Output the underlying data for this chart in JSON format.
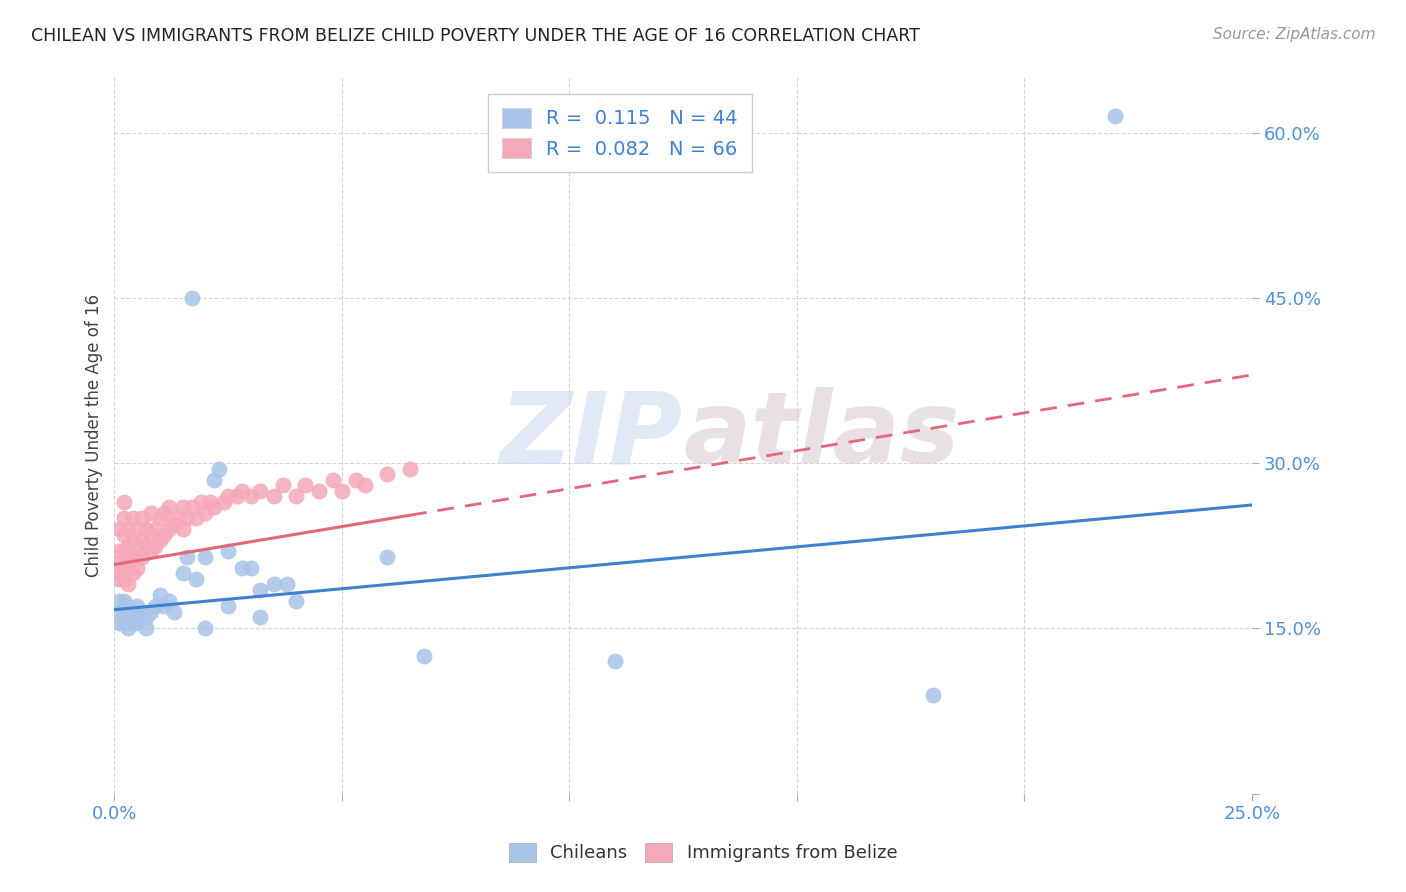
{
  "title": "CHILEAN VS IMMIGRANTS FROM BELIZE CHILD POVERTY UNDER THE AGE OF 16 CORRELATION CHART",
  "source": "Source: ZipAtlas.com",
  "ylabel": "Child Poverty Under the Age of 16",
  "xlim": [
    0.0,
    0.25
  ],
  "ylim": [
    0.0,
    0.65
  ],
  "x_ticks": [
    0.0,
    0.05,
    0.1,
    0.15,
    0.2,
    0.25
  ],
  "x_tick_labels": [
    "0.0%",
    "",
    "",
    "",
    "",
    "25.0%"
  ],
  "y_ticks": [
    0.0,
    0.15,
    0.3,
    0.45,
    0.6
  ],
  "y_tick_labels": [
    "",
    "15.0%",
    "30.0%",
    "45.0%",
    "60.0%"
  ],
  "legend_labels": [
    "Chileans",
    "Immigrants from Belize"
  ],
  "R_chilean": 0.115,
  "N_chilean": 44,
  "R_belize": 0.082,
  "N_belize": 66,
  "chilean_color": "#aac4e8",
  "belize_color": "#f5a8b8",
  "chilean_line_color": "#4080d0",
  "belize_line_color": "#e06878",
  "watermark": "ZIPatlas",
  "background_color": "#ffffff",
  "grid_color": "#d0d0d0",
  "title_color": "#222222",
  "source_color": "#999999",
  "tick_color": "#5090d8",
  "label_color": "#444444",
  "legend_text_color": "#4080d0",
  "chilean_scatter_x": [
    0.001,
    0.001,
    0.001,
    0.002,
    0.002,
    0.002,
    0.003,
    0.003,
    0.003,
    0.004,
    0.004,
    0.005,
    0.005,
    0.006,
    0.007,
    0.007,
    0.008,
    0.009,
    0.01,
    0.011,
    0.012,
    0.013,
    0.015,
    0.016,
    0.018,
    0.02,
    0.022,
    0.023,
    0.025,
    0.028,
    0.03,
    0.032,
    0.035,
    0.038,
    0.04,
    0.06,
    0.068,
    0.11,
    0.18,
    0.22,
    0.017,
    0.025,
    0.032,
    0.02
  ],
  "chilean_scatter_y": [
    0.175,
    0.165,
    0.155,
    0.175,
    0.165,
    0.155,
    0.17,
    0.16,
    0.15,
    0.165,
    0.155,
    0.17,
    0.155,
    0.165,
    0.16,
    0.15,
    0.165,
    0.17,
    0.18,
    0.17,
    0.175,
    0.165,
    0.2,
    0.215,
    0.195,
    0.215,
    0.285,
    0.295,
    0.22,
    0.205,
    0.205,
    0.185,
    0.19,
    0.19,
    0.175,
    0.215,
    0.125,
    0.12,
    0.09,
    0.615,
    0.45,
    0.17,
    0.16,
    0.15
  ],
  "belize_scatter_x": [
    0.001,
    0.001,
    0.001,
    0.001,
    0.001,
    0.002,
    0.002,
    0.002,
    0.002,
    0.002,
    0.002,
    0.003,
    0.003,
    0.003,
    0.003,
    0.004,
    0.004,
    0.004,
    0.004,
    0.005,
    0.005,
    0.005,
    0.006,
    0.006,
    0.006,
    0.007,
    0.007,
    0.008,
    0.008,
    0.008,
    0.009,
    0.009,
    0.01,
    0.01,
    0.011,
    0.011,
    0.012,
    0.012,
    0.013,
    0.014,
    0.015,
    0.015,
    0.016,
    0.017,
    0.018,
    0.019,
    0.02,
    0.021,
    0.022,
    0.024,
    0.025,
    0.027,
    0.028,
    0.03,
    0.032,
    0.035,
    0.037,
    0.04,
    0.042,
    0.045,
    0.048,
    0.05,
    0.053,
    0.055,
    0.06,
    0.065
  ],
  "belize_scatter_y": [
    0.2,
    0.195,
    0.21,
    0.22,
    0.24,
    0.195,
    0.205,
    0.22,
    0.235,
    0.25,
    0.265,
    0.19,
    0.21,
    0.225,
    0.24,
    0.2,
    0.215,
    0.23,
    0.25,
    0.205,
    0.22,
    0.24,
    0.215,
    0.23,
    0.25,
    0.225,
    0.24,
    0.22,
    0.235,
    0.255,
    0.225,
    0.24,
    0.23,
    0.25,
    0.235,
    0.255,
    0.24,
    0.26,
    0.245,
    0.25,
    0.24,
    0.26,
    0.25,
    0.26,
    0.25,
    0.265,
    0.255,
    0.265,
    0.26,
    0.265,
    0.27,
    0.27,
    0.275,
    0.27,
    0.275,
    0.27,
    0.28,
    0.27,
    0.28,
    0.275,
    0.285,
    0.275,
    0.285,
    0.28,
    0.29,
    0.295
  ],
  "ch_line_x0": 0.0,
  "ch_line_x1": 0.25,
  "ch_line_y0": 0.167,
  "ch_line_y1": 0.262,
  "bz_line_x0": 0.0,
  "bz_line_x1": 0.065,
  "bz_line_solid_x1": 0.065,
  "bz_line_dashed_x1": 0.25,
  "bz_line_y0": 0.208,
  "bz_line_y1_solid": 0.28,
  "bz_line_y1_dashed": 0.38
}
